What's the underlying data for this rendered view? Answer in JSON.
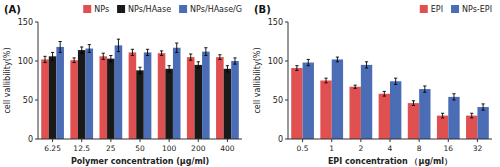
{
  "chart_data": [
    {
      "type": "bar",
      "title": "(A)",
      "categories": [
        "6.25",
        "12.5",
        "25",
        "50",
        "100",
        "200",
        "400"
      ],
      "series": [
        {
          "name": "NPs",
          "color": "#e05050",
          "values": [
            102,
            101,
            106,
            111,
            110,
            105,
            105
          ],
          "errors": [
            4,
            3,
            4,
            4,
            3,
            4,
            3
          ]
        },
        {
          "name": "NPs/HAase",
          "color": "#1a1a1a",
          "values": [
            106,
            114,
            103,
            88,
            90,
            95,
            90
          ],
          "errors": [
            5,
            4,
            4,
            4,
            4,
            4,
            4
          ]
        },
        {
          "name": "NPs/HAase/G",
          "color": "#4a6db5",
          "values": [
            118,
            116,
            120,
            111,
            117,
            112,
            100
          ],
          "errors": [
            7,
            5,
            8,
            4,
            6,
            5,
            4
          ]
        }
      ],
      "xlabel": "Polymer concentration (μg/ml)",
      "ylabel": "cell vallibility(%)",
      "ylim": [
        0,
        150
      ],
      "yticks": [
        0,
        50,
        100,
        150
      ],
      "grid": false,
      "legend": "upper right"
    },
    {
      "type": "bar",
      "title": "(B)",
      "categories": [
        "0.5",
        "1",
        "2",
        "4",
        "8",
        "16",
        "32"
      ],
      "series": [
        {
          "name": "EPI",
          "color": "#e05050",
          "values": [
            91,
            75,
            67,
            58,
            46,
            30,
            30
          ],
          "errors": [
            3,
            3,
            2,
            3,
            3,
            3,
            3
          ]
        },
        {
          "name": "NPs-EPI",
          "color": "#4a6db5",
          "values": [
            98,
            102,
            95,
            74,
            64,
            54,
            41
          ],
          "errors": [
            4,
            3,
            4,
            4,
            4,
            4,
            4
          ]
        }
      ],
      "xlabel": "EPI concentration （μg/ml）",
      "ylabel": "cell vallibility(%)",
      "ylim": [
        0,
        150
      ],
      "yticks": [
        0,
        50,
        100,
        150
      ],
      "grid": false,
      "legend": "upper right"
    }
  ]
}
